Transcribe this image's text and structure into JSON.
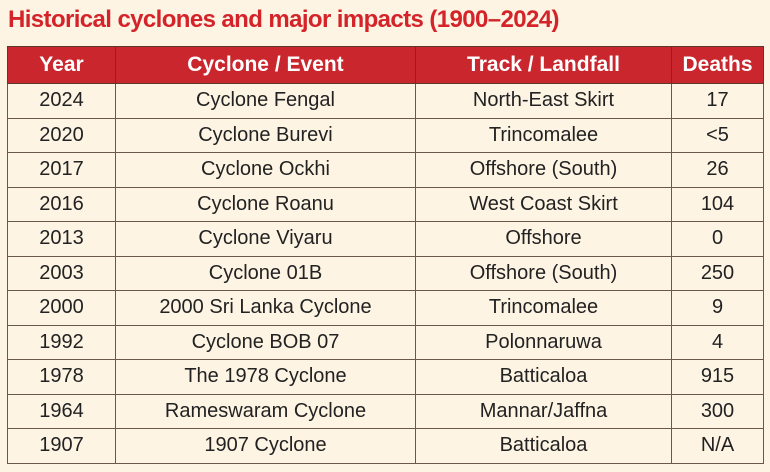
{
  "header": {
    "title": "Historical cyclones and major impacts (1900–2024)"
  },
  "table": {
    "columns": [
      "Year",
      "Cyclone / Event",
      "Track / Landfall",
      "Deaths"
    ],
    "rows": [
      [
        "2024",
        "Cyclone Fengal",
        "North-East Skirt",
        "17"
      ],
      [
        "2020",
        "Cyclone Burevi",
        "Trincomalee",
        "<5"
      ],
      [
        "2017",
        "Cyclone Ockhi",
        "Offshore (South)",
        "26"
      ],
      [
        "2016",
        "Cyclone Roanu",
        "West Coast Skirt",
        "104"
      ],
      [
        "2013",
        "Cyclone Viyaru",
        "Offshore",
        "0"
      ],
      [
        "2003",
        "Cyclone 01B",
        "Offshore (South)",
        "250"
      ],
      [
        "2000",
        "2000 Sri Lanka Cyclone",
        "Trincomalee",
        "9"
      ],
      [
        "1992",
        "Cyclone BOB 07",
        "Polonnaruwa",
        "4"
      ],
      [
        "1978",
        "The 1978 Cyclone",
        "Batticaloa",
        "915"
      ],
      [
        "1964",
        "Rameswaram Cyclone",
        "Mannar/Jaffna",
        "300"
      ],
      [
        "1907",
        "1907 Cyclone",
        "Batticaloa",
        "N/A"
      ]
    ]
  }
}
